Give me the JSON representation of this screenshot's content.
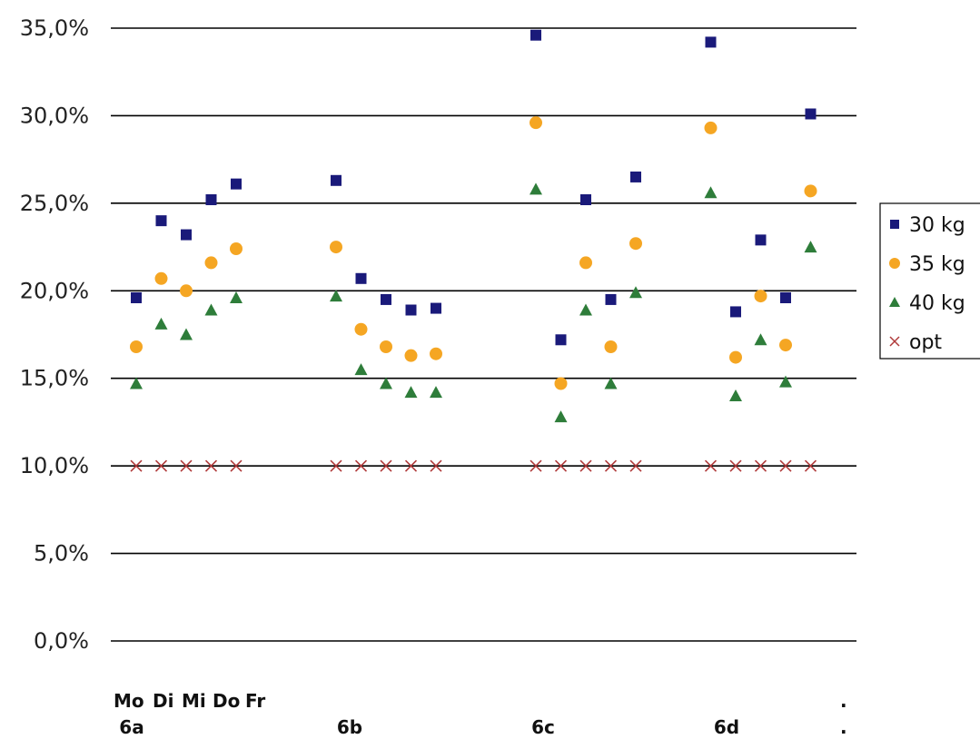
{
  "chart_data": {
    "type": "scatter",
    "y_ticks": [
      "0,0%",
      "5,0%",
      "10,0%",
      "15,0%",
      "20,0%",
      "25,0%",
      "30,0%",
      "35,0%"
    ],
    "ylim": [
      0,
      35
    ],
    "grid": true,
    "legend_position": "right",
    "day_labels": [
      "Mo",
      "Di",
      "Mi",
      "Do",
      "Fr"
    ],
    "class_labels": [
      "6a",
      "6b",
      "6c",
      "6d"
    ],
    "trailing_labels": [
      ".",
      "."
    ],
    "x_count": 30,
    "series": [
      {
        "name": "30 kg",
        "marker": "square",
        "color": "#1a1a7a",
        "points": [
          {
            "x": 1,
            "y": 19.6
          },
          {
            "x": 2,
            "y": 24.0
          },
          {
            "x": 3,
            "y": 23.2
          },
          {
            "x": 4,
            "y": 25.2
          },
          {
            "x": 5,
            "y": 26.1
          },
          {
            "x": 9,
            "y": 26.3
          },
          {
            "x": 10,
            "y": 20.7
          },
          {
            "x": 11,
            "y": 19.5
          },
          {
            "x": 12,
            "y": 18.9
          },
          {
            "x": 13,
            "y": 19.0
          },
          {
            "x": 17,
            "y": 34.6
          },
          {
            "x": 18,
            "y": 17.2
          },
          {
            "x": 19,
            "y": 25.2
          },
          {
            "x": 20,
            "y": 19.5
          },
          {
            "x": 21,
            "y": 26.5
          },
          {
            "x": 24,
            "y": 34.2
          },
          {
            "x": 25,
            "y": 18.8
          },
          {
            "x": 26,
            "y": 22.9
          },
          {
            "x": 27,
            "y": 19.6
          },
          {
            "x": 28,
            "y": 30.1
          }
        ]
      },
      {
        "name": "35 kg",
        "marker": "circle",
        "color": "#f5a623",
        "points": [
          {
            "x": 1,
            "y": 16.8
          },
          {
            "x": 2,
            "y": 20.7
          },
          {
            "x": 3,
            "y": 20.0
          },
          {
            "x": 4,
            "y": 21.6
          },
          {
            "x": 5,
            "y": 22.4
          },
          {
            "x": 9,
            "y": 22.5
          },
          {
            "x": 10,
            "y": 17.8
          },
          {
            "x": 11,
            "y": 16.8
          },
          {
            "x": 12,
            "y": 16.3
          },
          {
            "x": 13,
            "y": 16.4
          },
          {
            "x": 17,
            "y": 29.6
          },
          {
            "x": 18,
            "y": 14.7
          },
          {
            "x": 19,
            "y": 21.6
          },
          {
            "x": 20,
            "y": 16.8
          },
          {
            "x": 21,
            "y": 22.7
          },
          {
            "x": 24,
            "y": 29.3
          },
          {
            "x": 25,
            "y": 16.2
          },
          {
            "x": 26,
            "y": 19.7
          },
          {
            "x": 27,
            "y": 16.9
          },
          {
            "x": 28,
            "y": 25.7
          }
        ]
      },
      {
        "name": "40 kg",
        "marker": "triangle",
        "color": "#2e7d3a",
        "points": [
          {
            "x": 1,
            "y": 14.7
          },
          {
            "x": 2,
            "y": 18.1
          },
          {
            "x": 3,
            "y": 17.5
          },
          {
            "x": 4,
            "y": 18.9
          },
          {
            "x": 5,
            "y": 19.6
          },
          {
            "x": 9,
            "y": 19.7
          },
          {
            "x": 10,
            "y": 15.5
          },
          {
            "x": 11,
            "y": 14.7
          },
          {
            "x": 12,
            "y": 14.2
          },
          {
            "x": 13,
            "y": 14.2
          },
          {
            "x": 17,
            "y": 25.8
          },
          {
            "x": 18,
            "y": 12.8
          },
          {
            "x": 19,
            "y": 18.9
          },
          {
            "x": 20,
            "y": 14.7
          },
          {
            "x": 21,
            "y": 19.9
          },
          {
            "x": 24,
            "y": 25.6
          },
          {
            "x": 25,
            "y": 14.0
          },
          {
            "x": 26,
            "y": 17.2
          },
          {
            "x": 27,
            "y": 14.8
          },
          {
            "x": 28,
            "y": 22.5
          }
        ]
      },
      {
        "name": "opt",
        "marker": "x",
        "color": "#b03a3a",
        "points": [
          {
            "x": 1,
            "y": 10
          },
          {
            "x": 2,
            "y": 10
          },
          {
            "x": 3,
            "y": 10
          },
          {
            "x": 4,
            "y": 10
          },
          {
            "x": 5,
            "y": 10
          },
          {
            "x": 9,
            "y": 10
          },
          {
            "x": 10,
            "y": 10
          },
          {
            "x": 11,
            "y": 10
          },
          {
            "x": 12,
            "y": 10
          },
          {
            "x": 13,
            "y": 10
          },
          {
            "x": 17,
            "y": 10
          },
          {
            "x": 18,
            "y": 10
          },
          {
            "x": 19,
            "y": 10
          },
          {
            "x": 20,
            "y": 10
          },
          {
            "x": 21,
            "y": 10
          },
          {
            "x": 24,
            "y": 10
          },
          {
            "x": 25,
            "y": 10
          },
          {
            "x": 26,
            "y": 10
          },
          {
            "x": 27,
            "y": 10
          },
          {
            "x": 28,
            "y": 10
          }
        ]
      }
    ]
  }
}
